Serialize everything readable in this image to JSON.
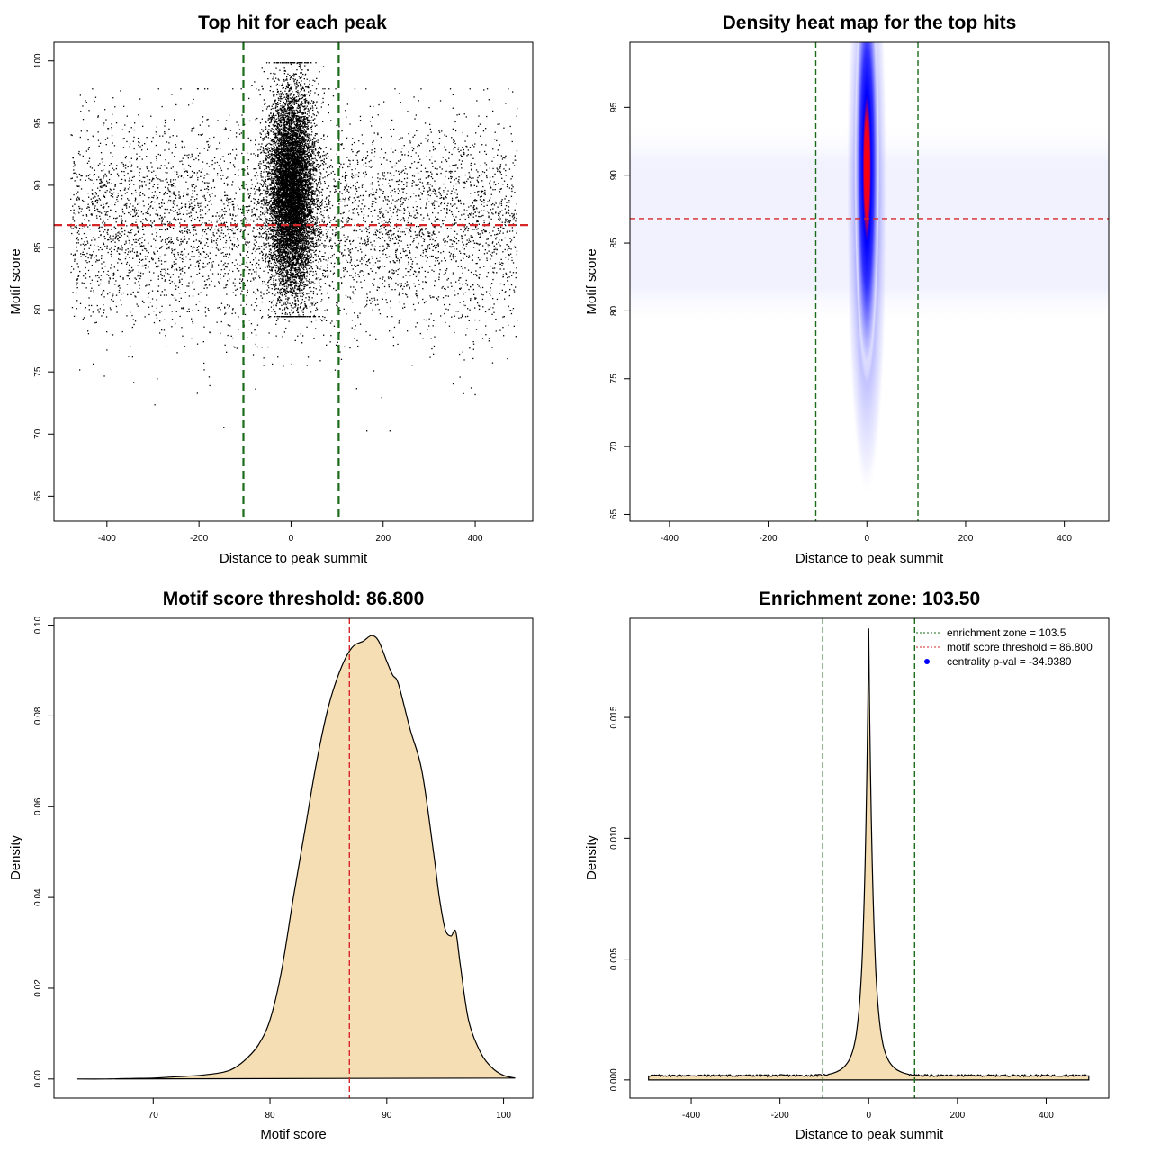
{
  "figure": {
    "background": "#ffffff",
    "fill_color": "#f5deb3",
    "threshold_color": "#d62728",
    "zone_color": "#1a6b1a"
  },
  "chart_data": [
    {
      "id": "scatter",
      "type": "scatter",
      "title": "Top hit for each peak",
      "xlabel": "Distance to peak summit",
      "ylabel": "Motif score",
      "xlim": [
        -515,
        525
      ],
      "ylim": [
        63,
        101.5
      ],
      "xticks": [
        -400,
        -200,
        0,
        200,
        400
      ],
      "yticks": [
        65,
        70,
        75,
        80,
        85,
        90,
        95,
        100
      ],
      "point_color": "#000000",
      "point_count_background": 5200,
      "point_count_center": 9000,
      "background_distribution": {
        "x_range": [
          -480,
          490
        ],
        "score_mean": 86.8,
        "score_sd": 4.2
      },
      "center_distribution": {
        "x_sd": 25,
        "score_mean": 89.5,
        "score_sd": 4.1
      },
      "hlines": [
        {
          "y": 86.8,
          "color": "#d62728",
          "style": "dashed"
        }
      ],
      "vlines": [
        {
          "x": -103.5,
          "color": "#1a6b1a",
          "style": "dashed"
        },
        {
          "x": 103.5,
          "color": "#1a6b1a",
          "style": "dashed"
        }
      ]
    },
    {
      "id": "heatmap",
      "type": "heatmap",
      "title": "Density heat map for the top hits",
      "xlabel": "Distance to peak summit",
      "ylabel": "Motif score",
      "xlim": [
        -480,
        490
      ],
      "ylim": [
        64.5,
        99.8
      ],
      "xticks": [
        -400,
        -200,
        0,
        200,
        400
      ],
      "yticks": [
        65,
        70,
        75,
        80,
        85,
        90,
        95
      ],
      "color_scale": [
        "#ffffff",
        "#0000ff",
        "#ff0000"
      ],
      "hotspot": {
        "x": 0,
        "y": 90.5,
        "x_sd": 7,
        "y_sd": 3.6
      },
      "hlines": [
        {
          "y": 86.8,
          "color": "#d62728",
          "style": "dashed"
        }
      ],
      "vlines": [
        {
          "x": -103.5,
          "color": "#1a6b1a",
          "style": "dashed"
        },
        {
          "x": 103.5,
          "color": "#1a6b1a",
          "style": "dashed"
        }
      ]
    },
    {
      "id": "score-density",
      "type": "area",
      "title": "Motif score threshold: 86.800",
      "xlabel": "Motif score",
      "ylabel": "Density",
      "xlim": [
        61.5,
        102.5
      ],
      "ylim": [
        -0.0042,
        0.1015
      ],
      "xticks": [
        70,
        80,
        90,
        100
      ],
      "yticks": [
        0.0,
        0.02,
        0.04,
        0.06,
        0.08,
        0.1
      ],
      "ytick_labels": [
        "0.00",
        "0.02",
        "0.04",
        "0.06",
        "0.08",
        "0.10"
      ],
      "x": [
        63.5,
        66,
        68,
        70,
        72,
        74,
        76,
        77,
        78,
        79,
        80,
        81,
        82,
        83,
        84,
        85,
        86,
        87,
        88,
        88.7,
        89.3,
        90,
        90.5,
        91,
        92,
        93,
        94,
        94.5,
        95,
        95.5,
        95.9,
        96.3,
        97,
        98,
        99,
        100,
        101
      ],
      "y": [
        0.0,
        0.0,
        0.0001,
        0.0002,
        0.0005,
        0.0008,
        0.0015,
        0.0025,
        0.0045,
        0.0075,
        0.013,
        0.024,
        0.04,
        0.055,
        0.07,
        0.082,
        0.09,
        0.095,
        0.0965,
        0.0977,
        0.0965,
        0.092,
        0.089,
        0.087,
        0.077,
        0.068,
        0.05,
        0.04,
        0.033,
        0.0315,
        0.0325,
        0.025,
        0.013,
        0.006,
        0.0025,
        0.0008,
        0.0002
      ],
      "vlines": [
        {
          "x": 86.8,
          "color": "#d62728",
          "style": "dashed"
        }
      ]
    },
    {
      "id": "position-density",
      "type": "area",
      "title": "Enrichment zone: 103.50",
      "xlabel": "Distance to peak summit",
      "ylabel": "Density",
      "xlim": [
        -538,
        541
      ],
      "ylim": [
        -0.00075,
        0.0191
      ],
      "xticks": [
        -400,
        -200,
        0,
        200,
        400
      ],
      "yticks": [
        0.0,
        0.005,
        0.01,
        0.015
      ],
      "ytick_labels": [
        "0.000",
        "0.005",
        "0.010",
        "0.015"
      ],
      "baseline": 0.00018,
      "peak": {
        "x": 0,
        "y": 0.01868,
        "width": 24,
        "shoulder_height": 0.0008
      },
      "range": [
        -496,
        496
      ],
      "vlines": [
        {
          "x": -103.5,
          "color": "#1a6b1a",
          "style": "dashed"
        },
        {
          "x": 103.5,
          "color": "#1a6b1a",
          "style": "dashed"
        }
      ],
      "legend": {
        "position": "top-right",
        "entries": [
          {
            "label": "enrichment zone = 103.5",
            "color": "#1a6b1a",
            "symbol": "dotted-line"
          },
          {
            "label": "motif score threshold = 86.800",
            "color": "#d62728",
            "symbol": "dotted-line"
          },
          {
            "label": "centrality p-val = -34.9380",
            "color": "#0000ff",
            "symbol": "dot"
          }
        ]
      }
    }
  ]
}
